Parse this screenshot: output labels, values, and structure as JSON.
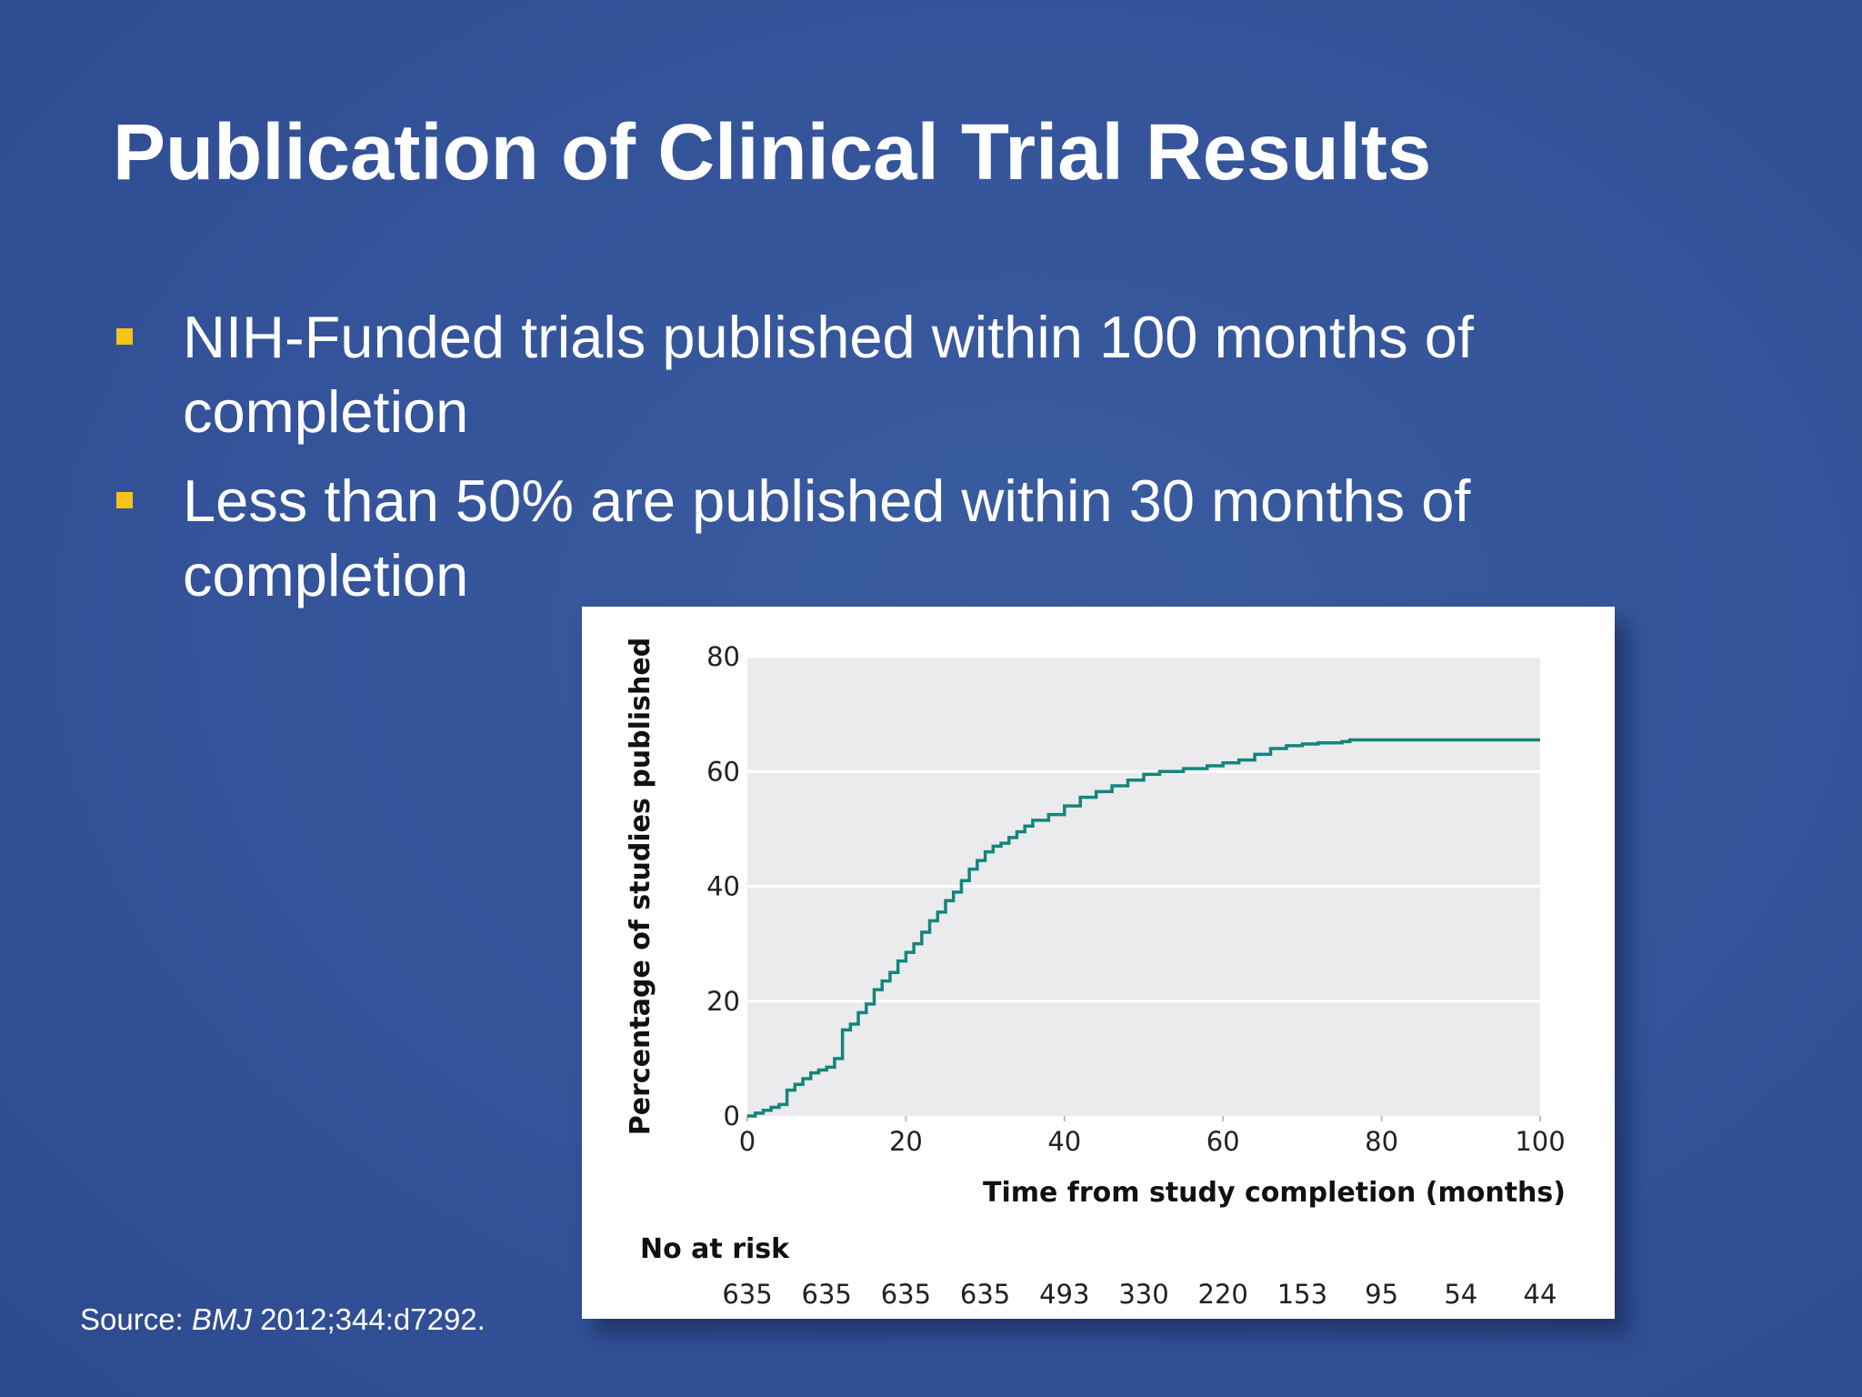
{
  "slide": {
    "title": "Publication of Clinical Trial Results",
    "bullets": [
      "NIH-Funded trials published within 100 months of completion",
      "Less than 50% are published within 30 months of completion"
    ],
    "source_prefix": "Source: ",
    "source_journal": "BMJ",
    "source_ref": " 2012;344:d7292."
  },
  "colors": {
    "background": "#36569a",
    "bullet": "#f5c318",
    "plot_bg": "#ebebed",
    "curve": "#13857c"
  },
  "chart_data": {
    "type": "line",
    "step": true,
    "xlabel": "Time from study completion (months)",
    "ylabel": "Percentage of studies published",
    "xlim": [
      0,
      100
    ],
    "ylim": [
      0,
      80
    ],
    "xticks": [
      0,
      20,
      40,
      60,
      80,
      100
    ],
    "yticks": [
      0,
      20,
      40,
      60,
      80
    ],
    "grid": "horizontal",
    "x": [
      0,
      1,
      2,
      3,
      4,
      5,
      6,
      7,
      8,
      9,
      10,
      11,
      12,
      13,
      14,
      15,
      16,
      17,
      18,
      19,
      20,
      21,
      22,
      23,
      24,
      25,
      26,
      27,
      28,
      29,
      30,
      31,
      32,
      33,
      34,
      35,
      36,
      38,
      40,
      42,
      44,
      46,
      48,
      50,
      52,
      55,
      58,
      60,
      62,
      64,
      66,
      68,
      70,
      72,
      75,
      76,
      80,
      90,
      100
    ],
    "y": [
      0,
      0.5,
      1.0,
      1.5,
      2.0,
      4.5,
      5.5,
      6.5,
      7.5,
      8.0,
      8.5,
      10,
      15,
      16,
      18,
      19.5,
      22,
      23.5,
      25,
      27,
      28.5,
      30,
      32,
      34,
      35.5,
      37.5,
      39,
      41,
      43,
      44.5,
      46,
      47,
      47.5,
      48.5,
      49.5,
      50.5,
      51.5,
      52.5,
      54,
      55.5,
      56.5,
      57.5,
      58.5,
      59.5,
      60,
      60.5,
      61,
      61.5,
      62,
      63,
      64,
      64.5,
      64.8,
      65,
      65.2,
      65.5,
      65.5,
      65.5,
      65.5
    ],
    "at_risk": {
      "label": "No at risk",
      "times": [
        0,
        10,
        20,
        30,
        40,
        50,
        60,
        70,
        80,
        90,
        100
      ],
      "values": [
        "635",
        "635",
        "635",
        "635",
        "493",
        "330",
        "220",
        "153",
        "95",
        "54",
        "44"
      ]
    }
  }
}
